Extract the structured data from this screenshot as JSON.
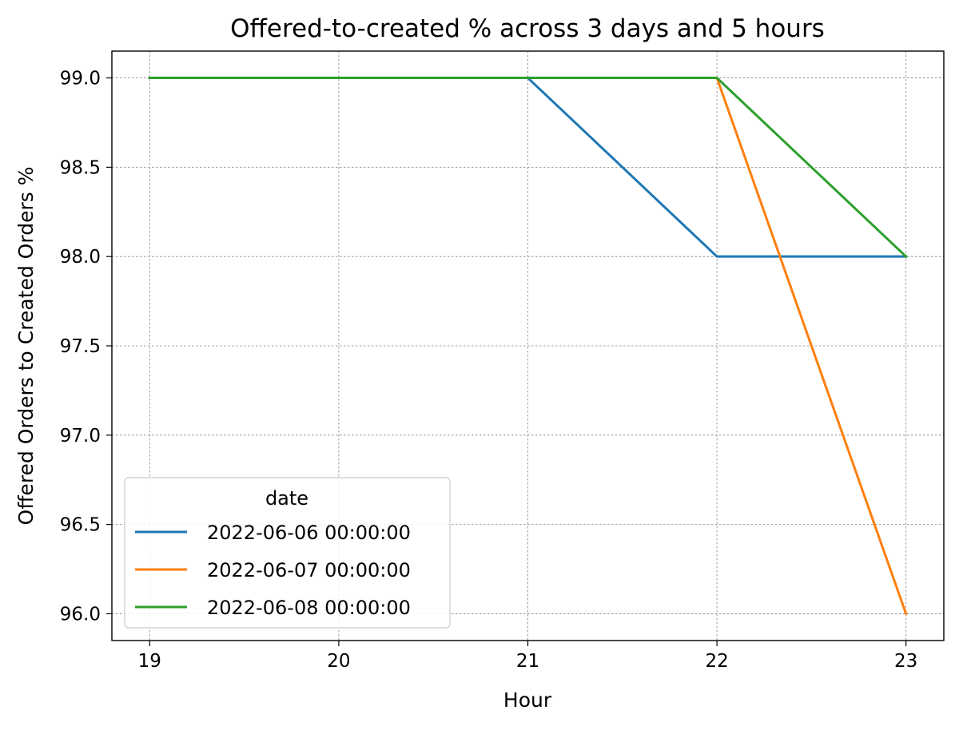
{
  "chart_data": {
    "type": "line",
    "title": "Offered-to-created % across 3 days and 5 hours",
    "xlabel": "Hour",
    "ylabel": "Offered Orders to Created Orders %",
    "x": [
      19,
      20,
      21,
      22,
      23
    ],
    "x_ticks": [
      "19",
      "20",
      "21",
      "22",
      "23"
    ],
    "y_ticks": [
      "96.0",
      "96.5",
      "97.0",
      "97.5",
      "98.0",
      "98.5",
      "99.0"
    ],
    "xlim": [
      18.8,
      23.2
    ],
    "ylim": [
      95.85,
      99.15
    ],
    "grid": true,
    "legend": {
      "title": "date",
      "placement": "lower-left"
    },
    "series": [
      {
        "name": "2022-06-06 00:00:00",
        "color": "#1f77b4",
        "values": [
          99.0,
          99.0,
          99.0,
          98.0,
          98.0
        ]
      },
      {
        "name": "2022-06-07 00:00:00",
        "color": "#ff7f0e",
        "values": [
          99.0,
          99.0,
          99.0,
          99.0,
          96.0
        ]
      },
      {
        "name": "2022-06-08 00:00:00",
        "color": "#2ca02c",
        "values": [
          99.0,
          99.0,
          99.0,
          99.0,
          98.0
        ]
      }
    ]
  }
}
